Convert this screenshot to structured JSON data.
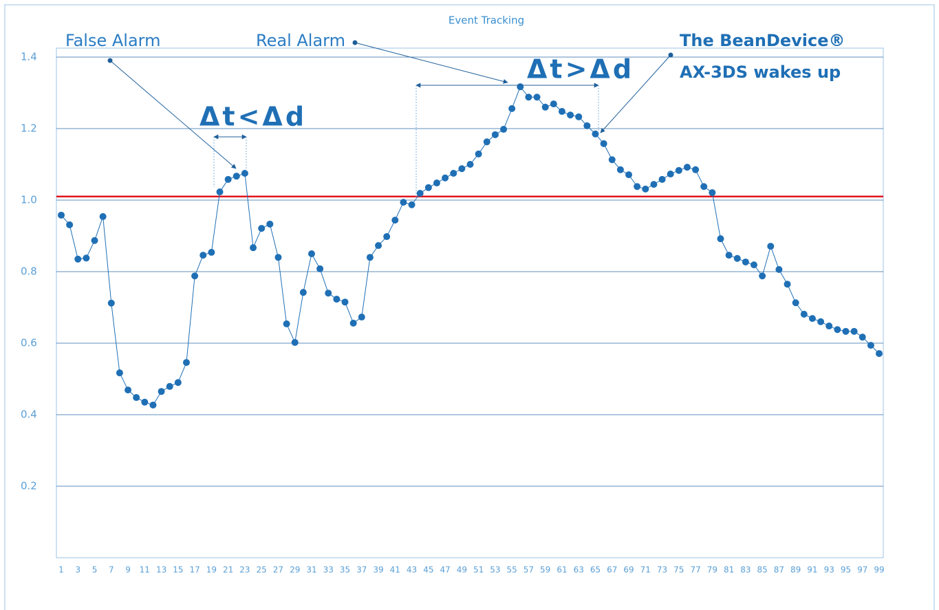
{
  "chart_data": {
    "type": "line",
    "title": "Event Tracking",
    "categories": [
      "1",
      null,
      "3",
      null,
      "5",
      null,
      "7",
      null,
      "9",
      null,
      "11",
      null,
      "13",
      null,
      "15",
      null,
      "17",
      null,
      "19",
      null,
      "21",
      null,
      "23",
      null,
      "25",
      null,
      "27",
      null,
      "29",
      null,
      "31",
      null,
      "33",
      null,
      "35",
      null,
      "37",
      null,
      "39",
      null,
      "41",
      null,
      "43",
      null,
      "45",
      null,
      "47",
      null,
      "49",
      null,
      "51",
      null,
      "53",
      null,
      "55",
      null,
      "57",
      null,
      "59",
      null,
      "61",
      null,
      "63",
      null,
      "65",
      null,
      "67",
      null,
      "69",
      null,
      "71",
      null,
      "73",
      null,
      "75",
      null,
      "77",
      null,
      "79",
      null,
      "81",
      null,
      "83",
      null,
      "85",
      null,
      "87",
      null,
      "89",
      null,
      "91",
      null,
      "93",
      null,
      "95",
      null,
      "97",
      null,
      "99"
    ],
    "values": [
      0.958,
      0.931,
      0.835,
      0.838,
      0.887,
      0.954,
      0.712,
      0.517,
      0.469,
      0.448,
      0.435,
      0.427,
      0.465,
      0.479,
      0.49,
      0.546,
      0.788,
      0.846,
      0.854,
      1.023,
      1.058,
      1.067,
      1.075,
      0.867,
      0.921,
      0.933,
      0.84,
      0.654,
      0.602,
      0.742,
      0.85,
      0.808,
      0.74,
      0.723,
      0.715,
      0.656,
      0.673,
      0.84,
      0.873,
      0.898,
      0.944,
      0.994,
      0.987,
      1.019,
      1.035,
      1.048,
      1.062,
      1.075,
      1.088,
      1.1,
      1.129,
      1.163,
      1.183,
      1.198,
      1.256,
      1.317,
      1.288,
      1.288,
      1.26,
      1.269,
      1.248,
      1.238,
      1.233,
      1.208,
      1.185,
      1.158,
      1.113,
      1.085,
      1.071,
      1.038,
      1.031,
      1.044,
      1.058,
      1.073,
      1.083,
      1.092,
      1.085,
      1.038,
      1.021,
      0.892,
      0.846,
      0.837,
      0.827,
      0.819,
      0.788,
      0.871,
      0.806,
      0.765,
      0.713,
      0.681,
      0.669,
      0.66,
      0.648,
      0.638,
      0.633,
      0.633,
      0.617,
      0.594,
      0.571
    ],
    "color": "#1f6fb5",
    "ylim": [
      0,
      1.4
    ],
    "yticks": [
      0.2,
      0.4,
      0.6,
      0.8,
      {
        "value": 1,
        "label": "1.0"
      },
      1.2,
      1.4
    ],
    "grid": true,
    "threshold": 1.01,
    "threshold_color": "#e0141e",
    "annotations": {
      "false_alarm": "False Alarm",
      "real_alarm": "Real Alarm",
      "device": "The BeanDevice®",
      "wakes": "AX-3DS wakes up",
      "dt_lt": "Δt<Δd",
      "dt_gt": "Δt>Δd"
    }
  }
}
